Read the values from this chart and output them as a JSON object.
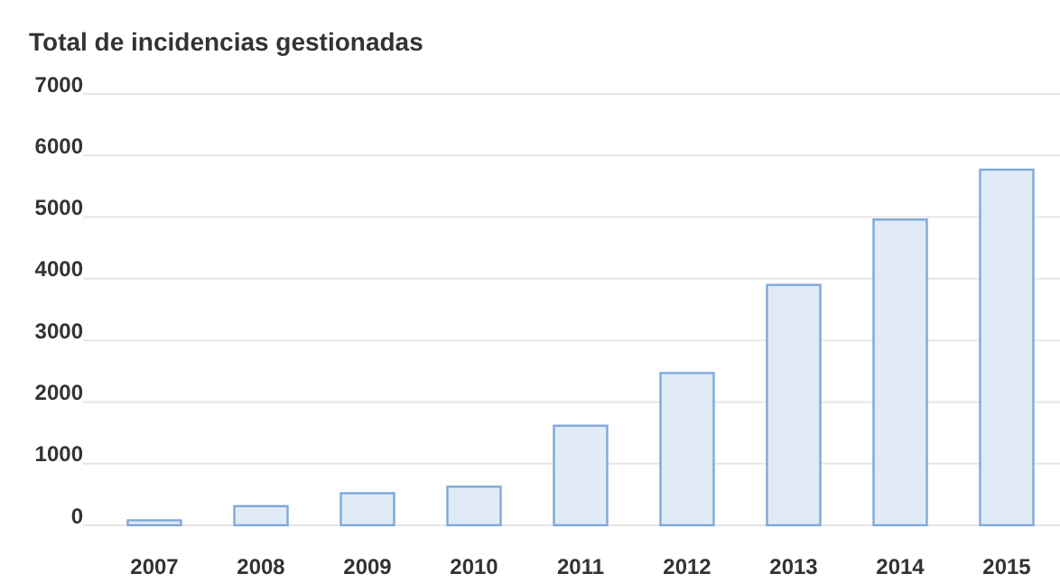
{
  "chart_data": {
    "type": "bar",
    "title": "Total de incidencias gestionadas",
    "categories": [
      "2007",
      "2008",
      "2009",
      "2010",
      "2011",
      "2012",
      "2013",
      "2014",
      "2015"
    ],
    "values": [
      80,
      310,
      520,
      625,
      1615,
      2470,
      3900,
      4960,
      5770
    ],
    "color": "#e1ebf8",
    "ylim": [
      0,
      7000
    ],
    "yticks": [
      0,
      1000,
      2000,
      3000,
      4000,
      5000,
      6000,
      7000
    ],
    "grid": "y"
  }
}
